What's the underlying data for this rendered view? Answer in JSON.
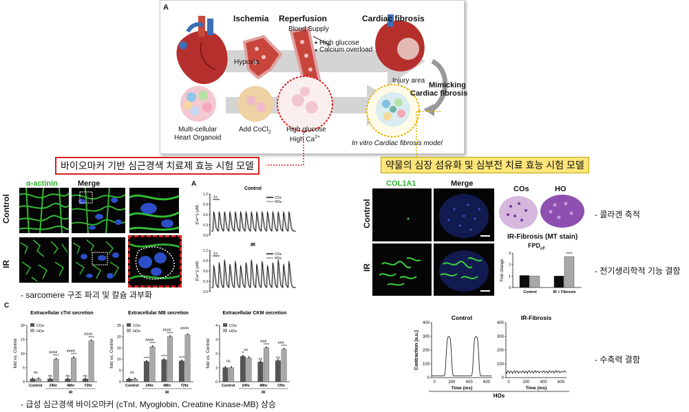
{
  "schematic": {
    "panel_letter": "A",
    "ischemia": "Ischemia",
    "hypoxia": "Hypoxia",
    "reperfusion": "Reperfusion",
    "blood_supply": "Blood Supply",
    "bullet_1": "High glucose",
    "bullet_2": "Calcium overload",
    "cardiac_fibrosis": "Cardiac fibrosis",
    "injury_area": "Injury area",
    "mimicking_1": "Mimicking",
    "mimicking_2": "Cardiac fibrosis",
    "organoid_1": "Multi-cellular",
    "organoid_2": "Heart Organoid",
    "add_cocl": "Add CoCl",
    "cocl_sub": "2",
    "high_glucose": "High glucose",
    "high_ca": "High Ca",
    "ca_sup": "2+",
    "model_label": "In vitro Cardiac fibrosis model"
  },
  "callouts": {
    "left": "바이오마커 기반 심근경색 치료제 효능 시험 모델",
    "right": "약물의 심장 섬유화 및 심부전 치료 효능 시험 모델"
  },
  "staining": {
    "col_alpha": "α-actinin",
    "col_merge": "Merge",
    "row_control": "Control",
    "row_ir": "IR",
    "caption": "- sarcomere 구조 파괴 및 칼슘 과부화"
  },
  "calcium": {
    "panel_letter": "A",
    "top_title": "Control",
    "bottom_title": "IR",
    "ylabel": "[Ca²⁺]ᵢ (μM)",
    "scale": "1s",
    "legend_cos": "COs",
    "legend_hos": "HOs",
    "y_ticks": [
      "1.2",
      "0.9",
      "0.6",
      "0.3",
      "0.0"
    ]
  },
  "bar_panel_letter": "C",
  "chart_data": [
    {
      "type": "bar",
      "title": "Extracellular cTnI secretion",
      "ylabel": "fold vs. Control",
      "xlabel": "IR",
      "categories": [
        "Control",
        "24hr",
        "48hr",
        "72hr"
      ],
      "ylim": [
        0,
        20
      ],
      "yticks": [
        0,
        5,
        10,
        15,
        20
      ],
      "series": [
        {
          "name": "COs",
          "values": [
            1.0,
            1.0,
            1.0,
            1.0
          ]
        },
        {
          "name": "HOs",
          "values": [
            1.0,
            8.0,
            8.5,
            14.5
          ]
        }
      ],
      "annotations": [
        {
          "cat": 0,
          "top": "ns",
          "bottom": ""
        },
        {
          "cat": 1,
          "top": "####",
          "bottom": "ns",
          "hos": "****"
        },
        {
          "cat": 2,
          "top": "####",
          "bottom": "ns",
          "hos": "****"
        },
        {
          "cat": 3,
          "top": "####",
          "bottom": "ns",
          "hos": "****"
        }
      ]
    },
    {
      "type": "bar",
      "title": "Extracellular MB secretion",
      "ylabel": "fold vs. Control",
      "xlabel": "IR",
      "categories": [
        "Control",
        "24hr",
        "48hr",
        "72hr"
      ],
      "ylim": [
        0,
        25
      ],
      "yticks": [
        0,
        5,
        10,
        15,
        20,
        25
      ],
      "series": [
        {
          "name": "COs",
          "values": [
            1.2,
            9.0,
            9.8,
            9.2
          ]
        },
        {
          "name": "HOs",
          "values": [
            1.2,
            15.5,
            20.0,
            20.8
          ]
        }
      ],
      "annotations": [
        {
          "cat": 0,
          "top": "ns",
          "bottom": ""
        },
        {
          "cat": 1,
          "top": "####",
          "bottom": "****",
          "hos": "****"
        },
        {
          "cat": 2,
          "top": "####",
          "bottom": "****",
          "hos": "****"
        },
        {
          "cat": 3,
          "top": "####",
          "bottom": "****",
          "hos": ""
        }
      ]
    },
    {
      "type": "bar",
      "title": "Extracellular CKM secretion",
      "ylabel": "fold vs. Control",
      "xlabel": "IR",
      "categories": [
        "Control",
        "24hr",
        "48hr",
        "72hr"
      ],
      "ylim": [
        0,
        4
      ],
      "yticks": [
        0,
        1,
        2,
        3,
        4
      ],
      "series": [
        {
          "name": "COs",
          "values": [
            1.0,
            1.8,
            1.4,
            1.5
          ]
        },
        {
          "name": "HOs",
          "values": [
            1.0,
            1.7,
            2.4,
            2.3
          ]
        }
      ],
      "annotations": [
        {
          "cat": 0,
          "top": "ns",
          "bottom": ""
        },
        {
          "cat": 1,
          "top": "ns",
          "bottom": "**",
          "hos": ""
        },
        {
          "cat": 2,
          "top": "###",
          "bottom": "ns",
          "hos": "****"
        },
        {
          "cat": 3,
          "top": "###",
          "bottom": "ns",
          "hos": "****"
        }
      ]
    }
  ],
  "bar_caption": "- 급성 심근경색 바이오마커 (cTnI, Myoglobin, Creatine Kinase-MB) 상승",
  "fibrosis_grid": {
    "col_col1a1": "COL1A1",
    "col_merge": "Merge",
    "row_control": "Control",
    "row_ir": "IR",
    "cos_label": "COs",
    "ho_label": "HO",
    "mt_title": "IR-Fibrosis (MT stain)"
  },
  "fpd_chart": {
    "type": "bar",
    "title": "FPD",
    "title_sub": "cF",
    "ylabel": "Fold change",
    "categories": [
      "Control",
      "IR + Fibrosis"
    ],
    "ylim": [
      0,
      3
    ],
    "yticks": [
      0,
      1,
      2,
      3
    ],
    "series": [
      {
        "name": "COs",
        "values": [
          1.05,
          1.0
        ]
      },
      {
        "name": "HOs",
        "values": [
          1.0,
          2.7
        ]
      }
    ],
    "significance": "****"
  },
  "contraction": {
    "left_title": "Control",
    "right_title": "IR-Fibrosis",
    "ylabel": "Contraction (a.u.)",
    "xlabel": "Time (ms)",
    "group_label": "HOs",
    "y_ticks": [
      "0",
      "100",
      "200",
      "300",
      "400"
    ],
    "x_ticks": [
      "0",
      "200",
      "400",
      "600"
    ]
  },
  "notes": {
    "collagen": "- 콜라겐 축적",
    "electro": "- 전기생리학적 기능 결함",
    "contract": "- 수축력 결함"
  },
  "colors": {
    "red_frame": "#d42020",
    "gold_frame": "#e7b400",
    "green_stain": "#39d23a",
    "nuclei_blue": "#2c4ec8",
    "bar_cos": "#555555",
    "bar_hos": "#a8a8a8"
  }
}
